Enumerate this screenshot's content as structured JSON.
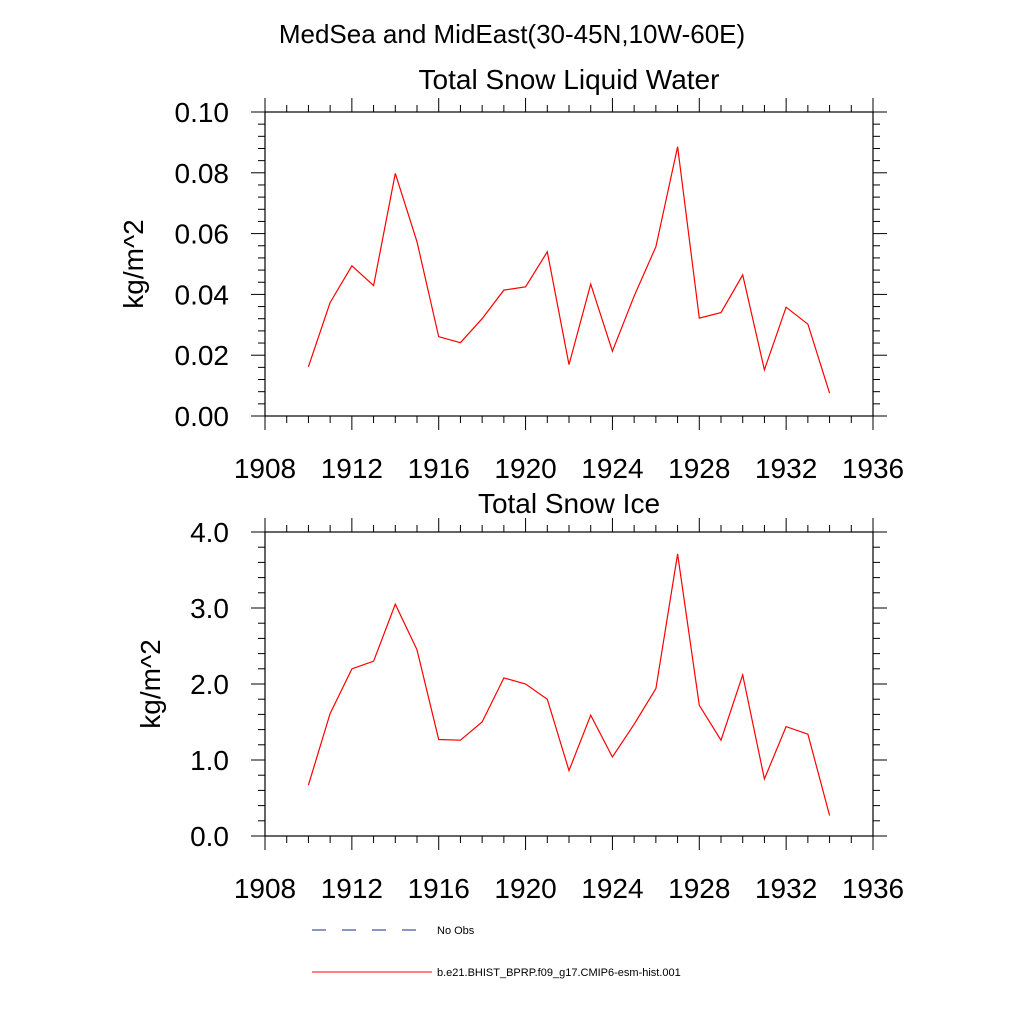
{
  "figure": {
    "suptitle": "MedSea and MidEast(30-45N,10W-60E)"
  },
  "colors": {
    "model_line": "#ff0000",
    "obs_line": "#1a2a8a",
    "axes": "#000000"
  },
  "legend": {
    "placement": "bottom",
    "entries": [
      {
        "label": "No Obs",
        "style": "dashed",
        "color": "#1a2a8a"
      },
      {
        "label": "b.e21.BHIST_BPRP.f09_g17.CMIP6-esm-hist.001",
        "style": "solid",
        "color": "#ff0000"
      }
    ]
  },
  "chart_data": [
    {
      "type": "line",
      "title": "Total Snow Liquid Water",
      "xlabel": "",
      "ylabel": "kg/m^2",
      "xlim": [
        1908,
        1936
      ],
      "ylim": [
        0,
        0.1
      ],
      "xticks": [
        1908,
        1912,
        1916,
        1920,
        1924,
        1928,
        1932,
        1936
      ],
      "xtick_labels": [
        "1908",
        "1912",
        "1916",
        "1920",
        "1924",
        "1928",
        "1932",
        "1936"
      ],
      "yticks": [
        0,
        0.02,
        0.04,
        0.06,
        0.08,
        0.1
      ],
      "ytick_labels": [
        "0.00",
        "0.02",
        "0.04",
        "0.06",
        "0.08",
        "0.10"
      ],
      "grid": false,
      "series": [
        {
          "name": "b.e21.BHIST_BPRP.f09_g17.CMIP6-esm-hist.001",
          "x": [
            1910,
            1911,
            1912,
            1913,
            1914,
            1915,
            1916,
            1917,
            1918,
            1919,
            1920,
            1921,
            1922,
            1923,
            1924,
            1925,
            1926,
            1927,
            1928,
            1929,
            1930,
            1931,
            1932,
            1933,
            1934
          ],
          "y": [
            0.0162,
            0.0373,
            0.0494,
            0.0429,
            0.0798,
            0.0573,
            0.0261,
            0.0241,
            0.032,
            0.0414,
            0.0425,
            0.054,
            0.0169,
            0.0434,
            0.0213,
            0.0394,
            0.0557,
            0.0886,
            0.0322,
            0.034,
            0.0464,
            0.0152,
            0.0358,
            0.0302,
            0.0075
          ]
        }
      ]
    },
    {
      "type": "line",
      "title": "Total Snow Ice",
      "xlabel": "",
      "ylabel": "kg/m^2",
      "xlim": [
        1908,
        1936
      ],
      "ylim": [
        0,
        4
      ],
      "xticks": [
        1908,
        1912,
        1916,
        1920,
        1924,
        1928,
        1932,
        1936
      ],
      "xtick_labels": [
        "1908",
        "1912",
        "1916",
        "1920",
        "1924",
        "1928",
        "1932",
        "1936"
      ],
      "yticks": [
        0,
        1,
        2,
        3,
        4
      ],
      "ytick_labels": [
        "0.0",
        "1.0",
        "2.0",
        "3.0",
        "4.0"
      ],
      "grid": false,
      "series": [
        {
          "name": "b.e21.BHIST_BPRP.f09_g17.CMIP6-esm-hist.001",
          "x": [
            1910,
            1911,
            1912,
            1913,
            1914,
            1915,
            1916,
            1917,
            1918,
            1919,
            1920,
            1921,
            1922,
            1923,
            1924,
            1925,
            1926,
            1927,
            1928,
            1929,
            1930,
            1931,
            1932,
            1933,
            1934
          ],
          "y": [
            0.67,
            1.61,
            2.2,
            2.3,
            3.05,
            2.45,
            1.27,
            1.26,
            1.5,
            2.08,
            2.0,
            1.8,
            0.86,
            1.59,
            1.04,
            1.47,
            1.94,
            3.71,
            1.72,
            1.26,
            2.12,
            0.75,
            1.44,
            1.34,
            0.27
          ]
        }
      ]
    }
  ]
}
